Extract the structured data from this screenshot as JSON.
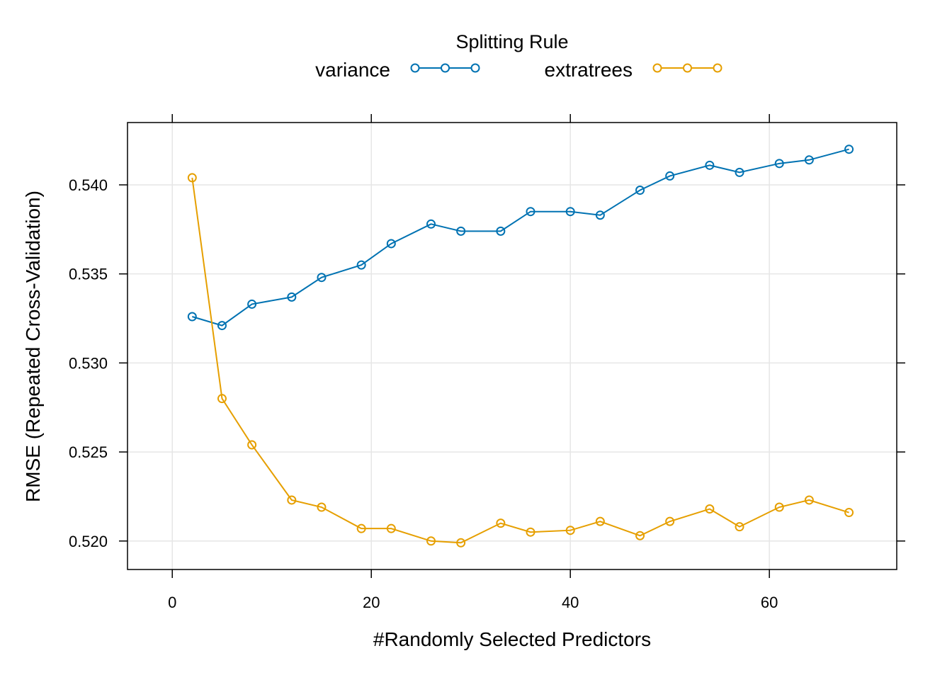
{
  "chart_data": {
    "type": "line",
    "title": "",
    "xlabel": "#Randomly Selected Predictors",
    "ylabel": "RMSE (Repeated Cross-Validation)",
    "xlim": [
      -4.5,
      72.8
    ],
    "ylim": [
      0.5184,
      0.5435
    ],
    "xticks": [
      0,
      20,
      40,
      60
    ],
    "yticks": [
      0.52,
      0.525,
      0.53,
      0.535,
      0.54
    ],
    "xtick_labels": [
      "0",
      "20",
      "40",
      "60"
    ],
    "ytick_labels": [
      "0.520",
      "0.525",
      "0.530",
      "0.535",
      "0.540"
    ],
    "grid": true,
    "legend": {
      "title": "Splitting Rule",
      "position": "top"
    },
    "x": [
      2,
      5,
      8,
      12,
      15,
      19,
      22,
      26,
      29,
      33,
      36,
      40,
      43,
      47,
      50,
      54,
      57,
      61,
      64,
      68
    ],
    "series": [
      {
        "name": "variance",
        "color": "#0072B2",
        "values": [
          0.5326,
          0.5321,
          0.5333,
          0.5337,
          0.5348,
          0.5355,
          0.5367,
          0.5378,
          0.5374,
          0.5374,
          0.5385,
          0.5385,
          0.5383,
          0.5397,
          0.5405,
          0.5411,
          0.5407,
          0.5412,
          0.5414,
          0.542
        ]
      },
      {
        "name": "extratrees",
        "color": "#E69F00",
        "values": [
          0.5404,
          0.528,
          0.5254,
          0.5223,
          0.5219,
          0.5207,
          0.5207,
          0.52,
          0.5199,
          0.521,
          0.5205,
          0.5206,
          0.5211,
          0.5203,
          0.5211,
          0.5218,
          0.5208,
          0.5219,
          0.5223,
          0.5216
        ]
      }
    ]
  }
}
